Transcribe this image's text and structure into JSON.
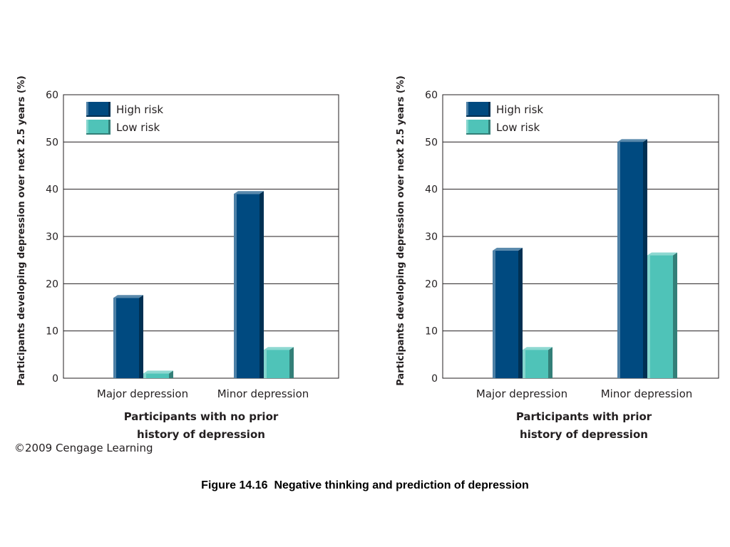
{
  "colors": {
    "high_risk": "#004a80",
    "low_risk": "#4fc3b8"
  },
  "chart_data": [
    {
      "type": "bar",
      "categories": [
        "Major depression",
        "Minor depression"
      ],
      "series": [
        {
          "name": "High risk",
          "values": [
            17,
            39
          ]
        },
        {
          "name": "Low risk",
          "values": [
            1,
            6
          ]
        }
      ],
      "ylabel": "Participants developing depression over next 2.5 years (%)",
      "xlabel_lines": [
        "Participants with no prior",
        "history of depression"
      ],
      "ylim": [
        0,
        60
      ],
      "yticks": [
        "0",
        "10",
        "20",
        "30",
        "40",
        "50",
        "60"
      ],
      "grid": true,
      "legend": "top-left"
    },
    {
      "type": "bar",
      "categories": [
        "Major depression",
        "Minor depression"
      ],
      "series": [
        {
          "name": "High risk",
          "values": [
            27,
            50
          ]
        },
        {
          "name": "Low risk",
          "values": [
            6,
            26
          ]
        }
      ],
      "ylabel": "Participants developing depression over next 2.5 years (%)",
      "xlabel_lines": [
        "Participants with prior",
        "history of depression"
      ],
      "ylim": [
        0,
        60
      ],
      "yticks": [
        "0",
        "10",
        "20",
        "30",
        "40",
        "50",
        "60"
      ],
      "grid": true,
      "legend": "top-left"
    }
  ],
  "copyright": "©2009 Cengage Learning",
  "caption": "Figure 14.16  Negative thinking and prediction of depression"
}
